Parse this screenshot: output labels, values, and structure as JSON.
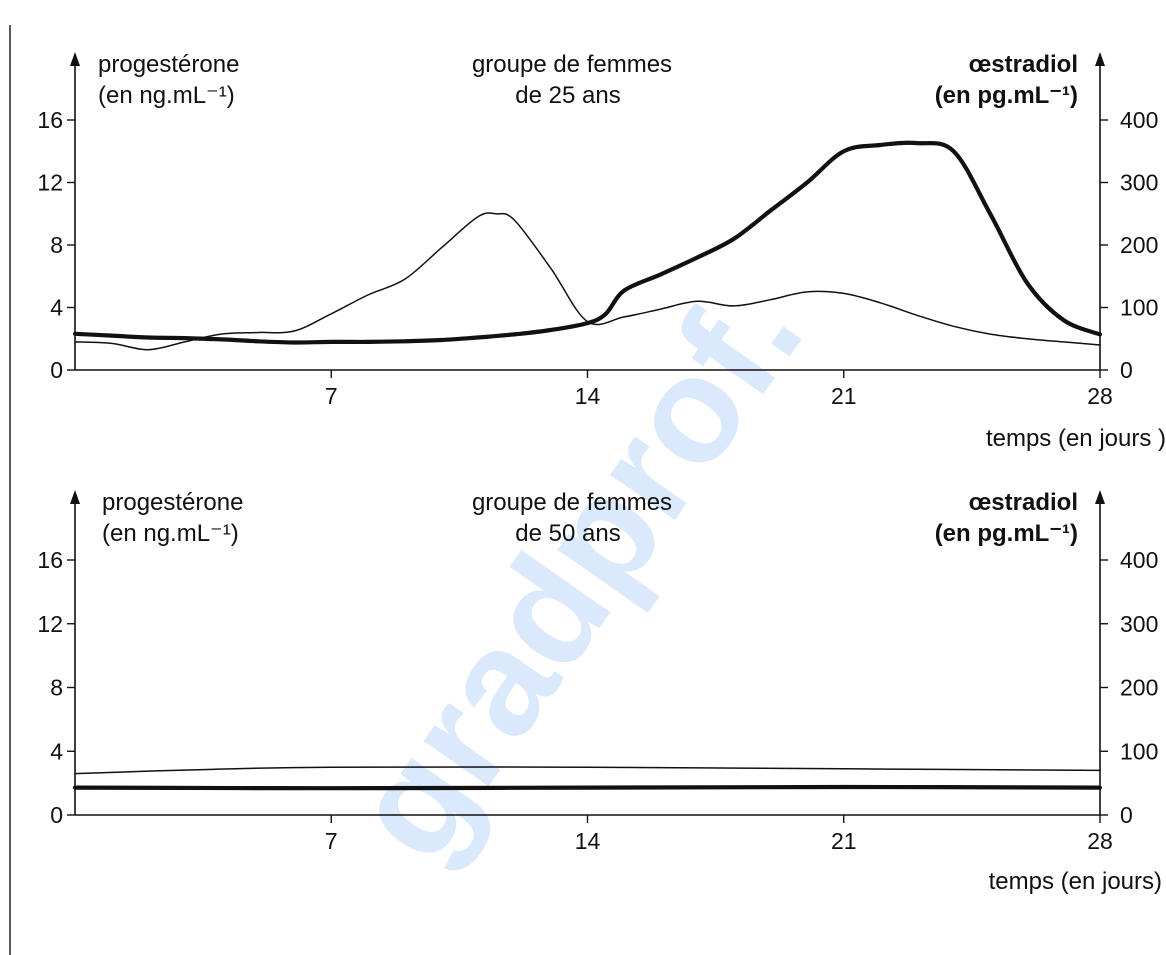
{
  "watermark": "gradprof.",
  "colors": {
    "line": "#111111",
    "watermark": "#5aa0f0"
  },
  "chart_data": [
    {
      "type": "line",
      "title": "groupe de femmes",
      "subtitle": "de 25 ans",
      "ylabel_left": "progestérone",
      "ylabel_left_unit": "(en ng.mL⁻¹)",
      "ylabel_right": "œstradiol",
      "ylabel_right_unit": "(en pg.mL⁻¹)",
      "xlabel": "temps (en jours )",
      "xlim": [
        0,
        28
      ],
      "ylim_left": [
        0,
        19
      ],
      "ylim_right": [
        0,
        475
      ],
      "x_ticks": [
        7,
        14,
        21,
        28
      ],
      "y_left_ticks": [
        0,
        4,
        8,
        12,
        16
      ],
      "y_right_ticks": [
        0,
        100,
        200,
        300,
        400
      ],
      "series": [
        {
          "style": "thin",
          "axis": "left",
          "x": [
            0,
            1,
            2,
            3,
            4,
            5,
            6,
            7,
            8,
            9,
            10,
            11,
            11.5,
            12,
            13,
            14,
            15,
            16,
            17,
            18,
            19,
            20,
            21,
            22,
            23,
            24,
            25,
            26,
            27,
            28
          ],
          "y": [
            1.8,
            1.7,
            1.3,
            1.8,
            2.3,
            2.4,
            2.5,
            3.6,
            4.8,
            5.8,
            7.8,
            9.8,
            10.0,
            9.6,
            6.5,
            3.1,
            3.4,
            3.9,
            4.4,
            4.1,
            4.5,
            5.0,
            4.9,
            4.3,
            3.5,
            2.8,
            2.3,
            2.0,
            1.8,
            1.6
          ]
        },
        {
          "style": "thick",
          "axis": "right",
          "x": [
            0,
            1,
            2,
            3,
            4,
            5,
            6,
            7,
            8,
            9,
            10,
            11,
            12,
            13,
            14,
            14.5,
            15,
            16,
            17,
            18,
            19,
            20,
            21,
            22,
            23,
            24,
            25,
            26,
            27,
            28
          ],
          "y": [
            58,
            55,
            52,
            51,
            49,
            46,
            44,
            45,
            45,
            46,
            48,
            52,
            57,
            64,
            75,
            90,
            127,
            153,
            180,
            210,
            255,
            300,
            350,
            360,
            363,
            350,
            250,
            140,
            80,
            57
          ]
        }
      ]
    },
    {
      "type": "line",
      "title": "groupe de femmes",
      "subtitle": "de 50 ans",
      "ylabel_left": "progestérone",
      "ylabel_left_unit": "(en ng.mL⁻¹)",
      "ylabel_right": "œstradiol",
      "ylabel_right_unit": "(en pg.mL⁻¹)",
      "xlabel": "temps (en jours)",
      "xlim": [
        0,
        28
      ],
      "ylim_left": [
        0,
        19
      ],
      "ylim_right": [
        0,
        475
      ],
      "x_ticks": [
        7,
        14,
        21,
        28
      ],
      "y_left_ticks": [
        0,
        4,
        8,
        12,
        16
      ],
      "y_right_ticks": [
        0,
        100,
        200,
        300,
        400
      ],
      "series": [
        {
          "style": "thin",
          "axis": "left",
          "x": [
            0,
            3.5,
            7,
            14,
            21,
            28
          ],
          "y": [
            2.6,
            2.85,
            3.0,
            3.0,
            2.9,
            2.8
          ]
        },
        {
          "style": "thick",
          "axis": "right",
          "x": [
            0,
            7,
            14,
            21,
            28
          ],
          "y": [
            43,
            42,
            43,
            44,
            43
          ]
        }
      ]
    }
  ]
}
